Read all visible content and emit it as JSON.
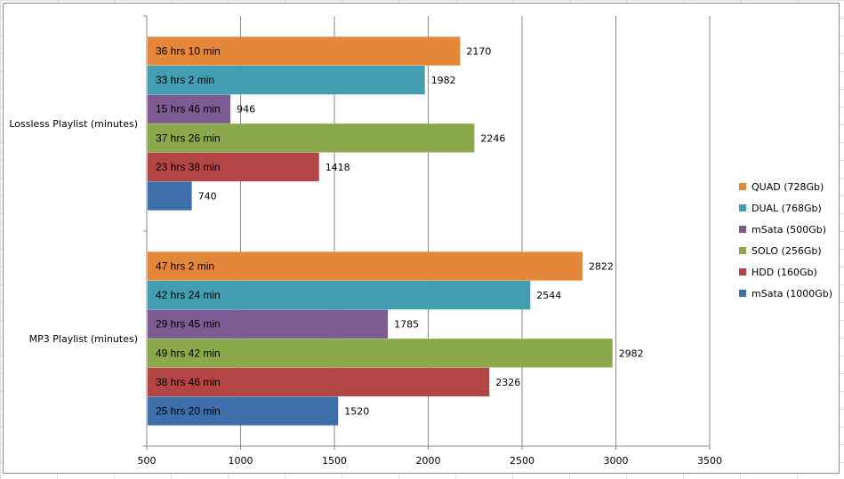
{
  "chart_data": {
    "type": "bar",
    "orientation": "horizontal",
    "categories": [
      "Lossless Playlist (minutes)",
      "MP3 Playlist (minutes)"
    ],
    "series": [
      {
        "name": "QUAD (728Gb)",
        "color": "#e4873a",
        "values": [
          2170,
          2822
        ],
        "labels": [
          "36 hrs 10 min",
          "47 hrs 2 min"
        ]
      },
      {
        "name": "DUAL (768Gb)",
        "color": "#429eb0",
        "values": [
          1982,
          2544
        ],
        "labels": [
          "33 hrs 2 min",
          "42 hrs 24 min"
        ]
      },
      {
        "name": "mSata (500Gb)",
        "color": "#7b5b91",
        "values": [
          946,
          1785
        ],
        "labels": [
          "15 hrs 46 min",
          "29 hrs 45 min"
        ]
      },
      {
        "name": "SOLO (256Gb)",
        "color": "#8ba84b",
        "values": [
          2246,
          2982
        ],
        "labels": [
          "37 hrs 26 min",
          "49 hrs 42 min"
        ]
      },
      {
        "name": "HDD (160Gb)",
        "color": "#b34544",
        "values": [
          1418,
          2326
        ],
        "labels": [
          "23 hrs 38 min",
          "38 hrs 46 min"
        ]
      },
      {
        "name": "mSata (1000Gb)",
        "color": "#3e6fab",
        "values": [
          740,
          1520
        ],
        "labels": [
          "",
          "25 hrs 20 min"
        ]
      }
    ],
    "xlim": [
      500,
      3500
    ],
    "xticks": [
      500,
      1000,
      1500,
      2000,
      2500,
      3000,
      3500
    ],
    "xlabel": "",
    "ylabel": "",
    "title": "",
    "grid": "vertical",
    "legend_position": "right"
  }
}
